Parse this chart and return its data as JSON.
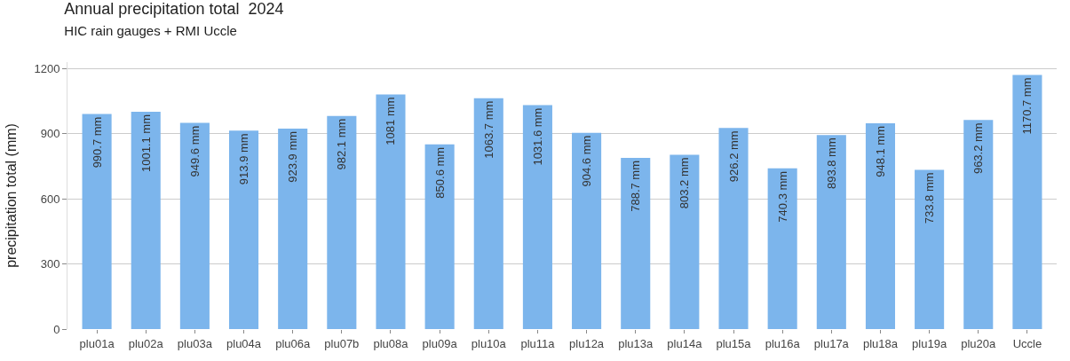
{
  "chart_data": {
    "type": "bar",
    "title": "Annual precipitation total  2024",
    "subtitle": "HIC rain gauges + RMI Uccle",
    "ylabel": "precipitation total (mm)",
    "categories": [
      "plu01a",
      "plu02a",
      "plu03a",
      "plu04a",
      "plu06a",
      "plu07b",
      "plu08a",
      "plu09a",
      "plu10a",
      "plu11a",
      "plu12a",
      "plu13a",
      "plu14a",
      "plu15a",
      "plu16a",
      "plu17a",
      "plu18a",
      "plu19a",
      "plu20a",
      "Uccle"
    ],
    "values": [
      990.7,
      1001.1,
      949.6,
      913.9,
      923.9,
      982.1,
      1081,
      850.6,
      1063.7,
      1031.6,
      904.6,
      788.7,
      803.2,
      926.2,
      740.3,
      893.8,
      948.1,
      733.8,
      963.2,
      1170.7
    ],
    "value_labels": [
      "990.7 mm",
      "1001.1 mm",
      "949.6 mm",
      "913.9 mm",
      "923.9 mm",
      "982.1 mm",
      "1081 mm",
      "850.6 mm",
      "1063.7 mm",
      "1031.6 mm",
      "904.6 mm",
      "788.7 mm",
      "803.2 mm",
      "926.2 mm",
      "740.3 mm",
      "893.8 mm",
      "948.1 mm",
      "733.8 mm",
      "963.2 mm",
      "1170.7 mm"
    ],
    "color": "#7cb5ec",
    "ylim": [
      0,
      1230
    ],
    "yticks": [
      0,
      300,
      600,
      900,
      1200
    ],
    "grid": "y",
    "legend": false
  }
}
